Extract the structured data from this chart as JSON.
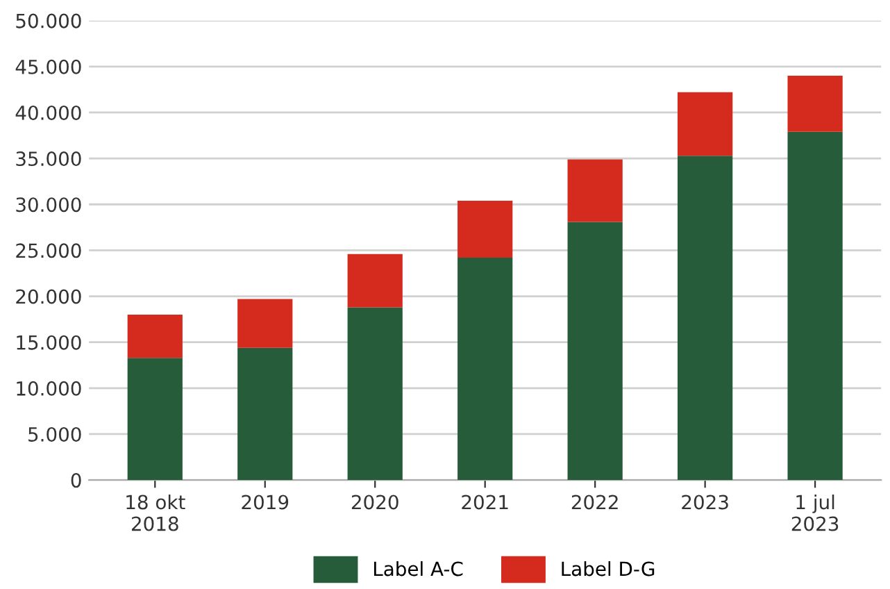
{
  "chart_data": {
    "type": "bar",
    "stacked": true,
    "categories": [
      "18 okt\n2018",
      "2019",
      "2020",
      "2021",
      "2022",
      "2023",
      "1 jul\n2023"
    ],
    "series": [
      {
        "name": "Label A-C",
        "color": "#265c3a",
        "values": [
          13300,
          14400,
          18800,
          24200,
          28100,
          35300,
          37900
        ]
      },
      {
        "name": "Label D-G",
        "color": "#d52b1e",
        "values": [
          4700,
          5300,
          5800,
          6200,
          6800,
          6900,
          6100
        ]
      }
    ],
    "ylim": [
      0,
      50000
    ],
    "yticks": [
      0,
      {
        "value": 5000,
        "label": "5.000"
      },
      {
        "value": 10000,
        "label": "10.000"
      },
      {
        "value": 15000,
        "label": "15.000"
      },
      {
        "value": 20000,
        "label": "20.000"
      },
      {
        "value": 25000,
        "label": "25.000"
      },
      {
        "value": 30000,
        "label": "30.000"
      },
      {
        "value": 35000,
        "label": "35.000"
      },
      {
        "value": 40000,
        "label": "40.000"
      },
      {
        "value": 45000,
        "label": "45.000"
      },
      {
        "value": 50000,
        "label": "50.000"
      }
    ],
    "grid": "y",
    "legend": "bottom"
  }
}
